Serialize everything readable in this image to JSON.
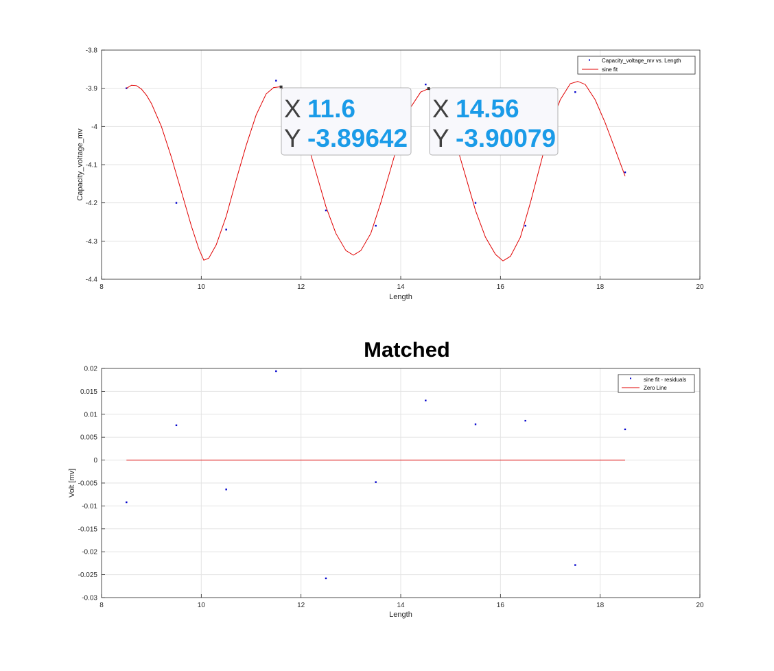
{
  "colors": {
    "data": "#0000cc",
    "fit": "#e00000",
    "grid": "#e3e3e3",
    "axis": "#262626",
    "tip_value": "#1a9be8",
    "tip_label": "#404040"
  },
  "chart_data": [
    {
      "type": "scatter",
      "title": "",
      "xlabel": "Length",
      "ylabel": "Capacity_voltage_mv",
      "xlim": [
        8,
        20
      ],
      "ylim": [
        -4.4,
        -3.8
      ],
      "xticks": [
        "8",
        "10",
        "12",
        "14",
        "16",
        "18",
        "20"
      ],
      "yticks": [
        "-3.8",
        "-3.9",
        "-4",
        "-4.1",
        "-4.2",
        "-4.3",
        "-4.4"
      ],
      "grid": true,
      "legend_position": "top-right",
      "series": [
        {
          "name": "Capacity_voltage_mv vs. Length",
          "kind": "markers",
          "points": [
            [
              8.5,
              -3.9
            ],
            [
              9.5,
              -4.2
            ],
            [
              10.5,
              -4.27
            ],
            [
              11.5,
              -3.88
            ],
            [
              12.5,
              -4.22
            ],
            [
              13.5,
              -4.26
            ],
            [
              14.5,
              -3.89
            ],
            [
              15.5,
              -4.2
            ],
            [
              16.5,
              -4.26
            ],
            [
              17.5,
              -3.91
            ],
            [
              18.5,
              -4.12
            ]
          ]
        },
        {
          "name": "sine fit",
          "kind": "line",
          "points": [
            [
              8.5,
              -3.9
            ],
            [
              8.6,
              -3.892
            ],
            [
              8.7,
              -3.893
            ],
            [
              8.8,
              -3.902
            ],
            [
              8.9,
              -3.918
            ],
            [
              9.0,
              -3.94
            ],
            [
              9.2,
              -4.0
            ],
            [
              9.4,
              -4.08
            ],
            [
              9.6,
              -4.17
            ],
            [
              9.8,
              -4.26
            ],
            [
              9.95,
              -4.32
            ],
            [
              10.05,
              -4.35
            ],
            [
              10.15,
              -4.345
            ],
            [
              10.3,
              -4.31
            ],
            [
              10.5,
              -4.235
            ],
            [
              10.7,
              -4.14
            ],
            [
              10.9,
              -4.05
            ],
            [
              11.1,
              -3.97
            ],
            [
              11.3,
              -3.915
            ],
            [
              11.45,
              -3.898
            ],
            [
              11.6,
              -3.896
            ],
            [
              11.75,
              -3.915
            ],
            [
              11.9,
              -3.955
            ],
            [
              12.1,
              -4.03
            ],
            [
              12.3,
              -4.12
            ],
            [
              12.5,
              -4.21
            ],
            [
              12.7,
              -4.28
            ],
            [
              12.9,
              -4.325
            ],
            [
              13.05,
              -4.337
            ],
            [
              13.2,
              -4.325
            ],
            [
              13.4,
              -4.28
            ],
            [
              13.6,
              -4.2
            ],
            [
              13.8,
              -4.11
            ],
            [
              14.0,
              -4.02
            ],
            [
              14.2,
              -3.95
            ],
            [
              14.4,
              -3.91
            ],
            [
              14.56,
              -3.901
            ],
            [
              14.7,
              -3.915
            ],
            [
              14.9,
              -3.965
            ],
            [
              15.1,
              -4.04
            ],
            [
              15.3,
              -4.13
            ],
            [
              15.5,
              -4.22
            ],
            [
              15.7,
              -4.29
            ],
            [
              15.9,
              -4.335
            ],
            [
              16.05,
              -4.352
            ],
            [
              16.2,
              -4.34
            ],
            [
              16.4,
              -4.29
            ],
            [
              16.6,
              -4.2
            ],
            [
              16.8,
              -4.1
            ],
            [
              17.0,
              -4.0
            ],
            [
              17.2,
              -3.93
            ],
            [
              17.4,
              -3.888
            ],
            [
              17.55,
              -3.882
            ],
            [
              17.7,
              -3.89
            ],
            [
              17.9,
              -3.93
            ],
            [
              18.1,
              -3.99
            ],
            [
              18.3,
              -4.06
            ],
            [
              18.5,
              -4.13
            ]
          ]
        }
      ],
      "datatips": [
        {
          "x_label": "X",
          "x_value": "11.6",
          "y_label": "Y",
          "y_value": "-3.89642",
          "x": 11.6,
          "y": -3.89642
        },
        {
          "x_label": "X",
          "x_value": "14.56",
          "y_label": "Y",
          "y_value": "-3.90079",
          "x": 14.56,
          "y": -3.90079
        }
      ]
    },
    {
      "type": "scatter",
      "title": "Matched",
      "xlabel": "Length",
      "ylabel": "Volt [mv]",
      "xlim": [
        8,
        20
      ],
      "ylim": [
        -0.03,
        0.02
      ],
      "xticks": [
        "8",
        "10",
        "12",
        "14",
        "16",
        "18",
        "20"
      ],
      "yticks": [
        "0.02",
        "0.015",
        "0.01",
        "0.005",
        "0",
        "-0.005",
        "-0.01",
        "-0.015",
        "-0.02",
        "-0.025",
        "-0.03"
      ],
      "grid": true,
      "legend_position": "top-right",
      "series": [
        {
          "name": "sine fit - residuals",
          "kind": "markers",
          "points": [
            [
              8.5,
              -0.0092
            ],
            [
              9.5,
              0.0076
            ],
            [
              10.5,
              -0.0064
            ],
            [
              11.5,
              0.0194
            ],
            [
              12.5,
              -0.0258
            ],
            [
              13.5,
              -0.0048
            ],
            [
              14.5,
              0.013
            ],
            [
              15.5,
              0.0078
            ],
            [
              16.5,
              0.0086
            ],
            [
              17.5,
              -0.0229
            ],
            [
              18.5,
              0.0067
            ]
          ]
        },
        {
          "name": "Zero Line",
          "kind": "line",
          "points": [
            [
              8.5,
              0
            ],
            [
              18.5,
              0
            ]
          ]
        }
      ]
    }
  ]
}
